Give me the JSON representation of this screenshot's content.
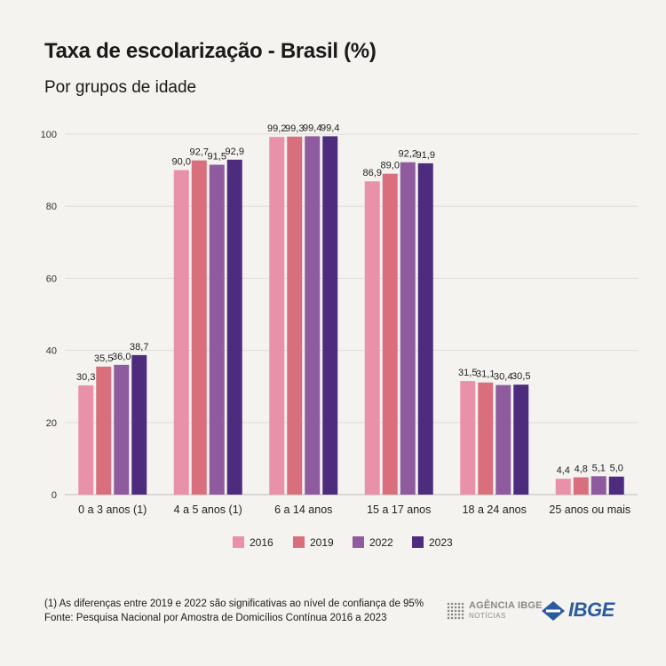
{
  "title": "Taxa de escolarização - Brasil (%)",
  "subtitle": "Por grupos de idade",
  "footnote": "(1) As diferenças entre 2019 e 2022 são significativas ao nível de confiança de 95%",
  "source": "Fonte: Pesquisa Nacional por Amostra de Domicílios Contínua 2016 a 2023",
  "logos": {
    "agencia_line1": "AGÊNCIA IBGE",
    "agencia_line2": "NOTÍCIAS",
    "ibge": "IBGE"
  },
  "colors": {
    "2016": "#e991a8",
    "2019": "#d96f7c",
    "2022": "#8e5b9e",
    "2023": "#4d2c7d"
  },
  "chart_data": {
    "type": "bar",
    "categories": [
      "0 a 3 anos (1)",
      "4 a 5 anos (1)",
      "6 a 14 anos",
      "15 a 17 anos",
      "18 a 24 anos",
      "25 anos ou mais"
    ],
    "series": [
      {
        "name": "2016",
        "values": [
          30.3,
          90.0,
          99.2,
          86.9,
          31.5,
          4.4
        ],
        "labels": [
          "30,3",
          "90,0",
          "99,2",
          "86,9",
          "31,5",
          "4,4"
        ]
      },
      {
        "name": "2019",
        "values": [
          35.5,
          92.7,
          99.3,
          89.0,
          31.1,
          4.8
        ],
        "labels": [
          "35,5",
          "92,7",
          "99,3",
          "89,0",
          "31,1",
          "4,8"
        ]
      },
      {
        "name": "2022",
        "values": [
          36.0,
          91.5,
          99.4,
          92.2,
          30.4,
          5.1
        ],
        "labels": [
          "36,0",
          "91,5",
          "99,4",
          "92,2",
          "30,4",
          "5,1"
        ]
      },
      {
        "name": "2023",
        "values": [
          38.7,
          92.9,
          99.4,
          91.9,
          30.5,
          5.0
        ],
        "labels": [
          "38,7",
          "92,9",
          "99,4",
          "91,9",
          "30,5",
          "5,0"
        ]
      }
    ],
    "yticks": [
      0,
      20,
      40,
      60,
      80,
      100
    ],
    "ylim": [
      0,
      100
    ],
    "grid": true,
    "legend": "bottom"
  }
}
